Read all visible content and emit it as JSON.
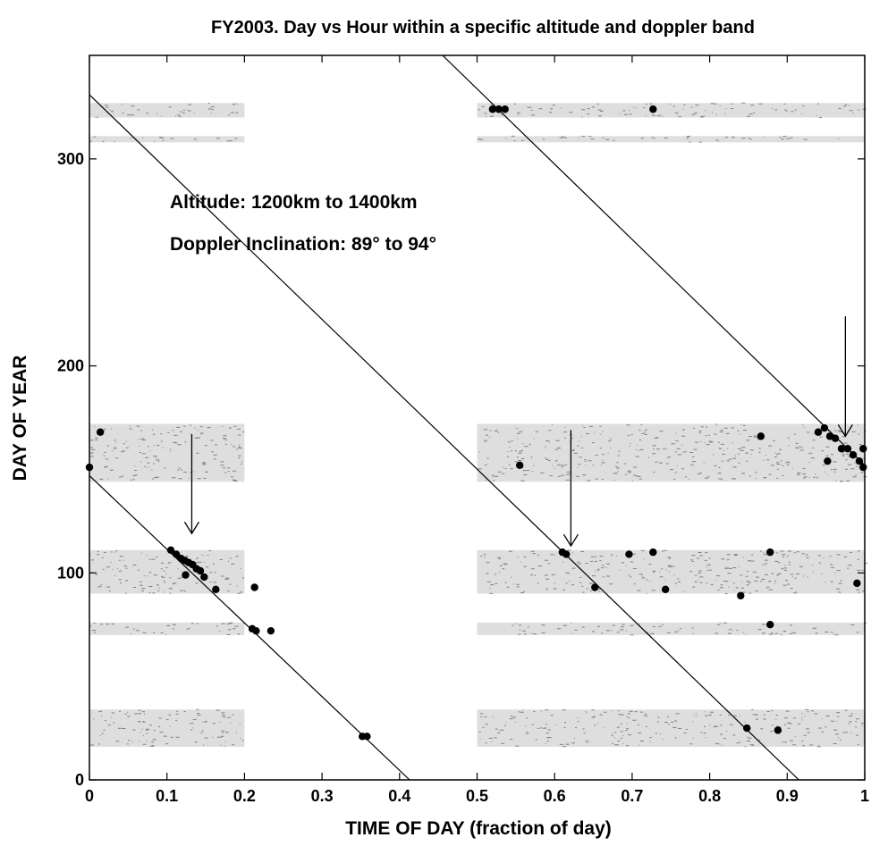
{
  "chart_data": {
    "type": "scatter",
    "title": "FY2003.  Day vs Hour within a specific altitude and doppler band",
    "xlabel": "TIME OF DAY (fraction of day)",
    "ylabel": "DAY OF YEAR",
    "xlim": [
      0,
      1
    ],
    "ylim": [
      0,
      350
    ],
    "x_ticks": [
      "0",
      "0.1",
      "0.2",
      "0.3",
      "0.4",
      "0.5",
      "0.6",
      "0.7",
      "0.8",
      "0.9",
      "1"
    ],
    "y_ticks": [
      "0",
      "100",
      "200",
      "300"
    ],
    "grid": false,
    "annotations": [
      "Altitude: 1200km to 1400km",
      "Doppler Inclination: 89° to 94°"
    ],
    "coverage_bands": [
      {
        "x": [
          0.0,
          0.2
        ],
        "y": [
          320,
          327
        ]
      },
      {
        "x": [
          0.0,
          0.2
        ],
        "y": [
          308,
          311
        ]
      },
      {
        "x": [
          0.0,
          0.2
        ],
        "y": [
          144,
          172
        ]
      },
      {
        "x": [
          0.0,
          0.2
        ],
        "y": [
          90,
          111
        ]
      },
      {
        "x": [
          0.0,
          0.2
        ],
        "y": [
          70,
          76
        ]
      },
      {
        "x": [
          0.0,
          0.2
        ],
        "y": [
          16,
          34
        ]
      },
      {
        "x": [
          0.5,
          1.0
        ],
        "y": [
          320,
          327
        ]
      },
      {
        "x": [
          0.5,
          1.0
        ],
        "y": [
          308,
          311
        ]
      },
      {
        "x": [
          0.5,
          1.0
        ],
        "y": [
          144,
          172
        ]
      },
      {
        "x": [
          0.5,
          1.0
        ],
        "y": [
          90,
          111
        ]
      },
      {
        "x": [
          0.5,
          1.0
        ],
        "y": [
          70,
          76
        ]
      },
      {
        "x": [
          0.5,
          1.0
        ],
        "y": [
          16,
          34
        ]
      }
    ],
    "trend_lines": [
      {
        "x": [
          0.0,
          0.413
        ],
        "y": [
          147,
          0
        ]
      },
      {
        "x": [
          0.0,
          0.915
        ],
        "y": [
          331,
          0
        ]
      },
      {
        "x": [
          0.45,
          1.0
        ],
        "y": [
          352,
          152
        ]
      }
    ],
    "arrows": [
      {
        "x": 0.132,
        "y_from": 167,
        "y_to": 119
      },
      {
        "x": 0.621,
        "y_from": 169,
        "y_to": 113
      },
      {
        "x": 0.975,
        "y_from": 224,
        "y_to": 166
      }
    ],
    "points": [
      {
        "x": 0.105,
        "y": 111
      },
      {
        "x": 0.112,
        "y": 109
      },
      {
        "x": 0.118,
        "y": 107
      },
      {
        "x": 0.123,
        "y": 106
      },
      {
        "x": 0.128,
        "y": 105
      },
      {
        "x": 0.133,
        "y": 104
      },
      {
        "x": 0.138,
        "y": 102
      },
      {
        "x": 0.143,
        "y": 101
      },
      {
        "x": 0.148,
        "y": 98
      },
      {
        "x": 0.124,
        "y": 99
      },
      {
        "x": 0.163,
        "y": 92
      },
      {
        "x": 0.213,
        "y": 93
      },
      {
        "x": 0.21,
        "y": 73
      },
      {
        "x": 0.215,
        "y": 72
      },
      {
        "x": 0.234,
        "y": 72
      },
      {
        "x": 0.352,
        "y": 21
      },
      {
        "x": 0.358,
        "y": 21
      },
      {
        "x": 0.014,
        "y": 168
      },
      {
        "x": 0.0,
        "y": 151
      },
      {
        "x": 0.52,
        "y": 324
      },
      {
        "x": 0.528,
        "y": 324
      },
      {
        "x": 0.536,
        "y": 324
      },
      {
        "x": 0.727,
        "y": 324
      },
      {
        "x": 0.61,
        "y": 110
      },
      {
        "x": 0.615,
        "y": 109
      },
      {
        "x": 0.696,
        "y": 109
      },
      {
        "x": 0.727,
        "y": 110
      },
      {
        "x": 0.652,
        "y": 93
      },
      {
        "x": 0.743,
        "y": 92
      },
      {
        "x": 0.84,
        "y": 89
      },
      {
        "x": 0.878,
        "y": 110
      },
      {
        "x": 0.99,
        "y": 95
      },
      {
        "x": 0.878,
        "y": 75
      },
      {
        "x": 0.848,
        "y": 25
      },
      {
        "x": 0.888,
        "y": 24
      },
      {
        "x": 0.555,
        "y": 152
      },
      {
        "x": 0.866,
        "y": 166
      },
      {
        "x": 0.94,
        "y": 168
      },
      {
        "x": 0.948,
        "y": 170
      },
      {
        "x": 0.955,
        "y": 166
      },
      {
        "x": 0.962,
        "y": 165
      },
      {
        "x": 0.97,
        "y": 160
      },
      {
        "x": 0.978,
        "y": 160
      },
      {
        "x": 0.985,
        "y": 157
      },
      {
        "x": 0.993,
        "y": 154
      },
      {
        "x": 0.998,
        "y": 151
      },
      {
        "x": 0.952,
        "y": 154
      },
      {
        "x": 0.998,
        "y": 160
      }
    ]
  }
}
